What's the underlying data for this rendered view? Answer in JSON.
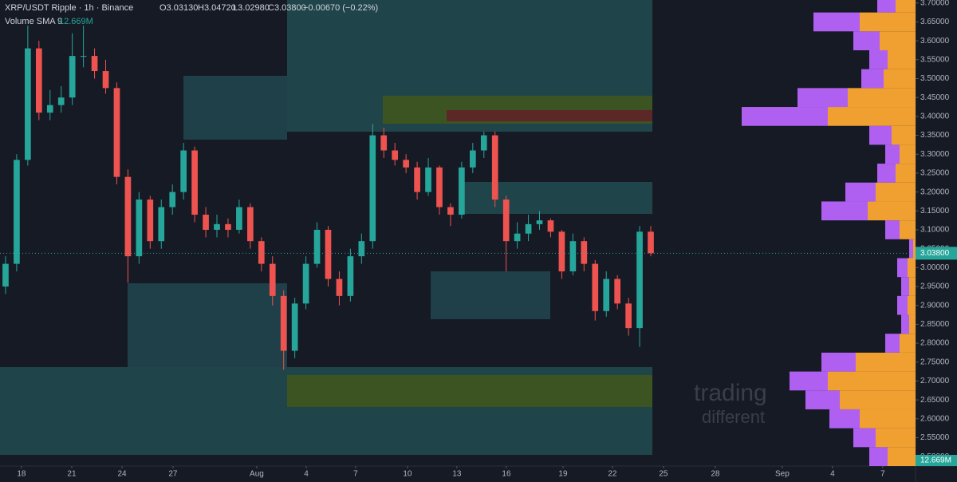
{
  "chart_data": {
    "type": "candlestick",
    "title": "XRP/USDT Ripple · 1h · Binance",
    "ohlc": [
      "O3.03130",
      "H3.04720",
      "L3.02980",
      "C3.03800",
      "−0.00670 (−0.22%)"
    ],
    "indicator": "Volume SMA 9",
    "volume_sma": "12.669M",
    "watermark": [
      "trading",
      "different"
    ],
    "up_color": "#26a69a",
    "down_color": "#ef5350",
    "candles": [
      [
        2.95,
        3.03,
        2.93,
        3.01
      ],
      [
        3.01,
        3.3,
        2.99,
        3.285
      ],
      [
        3.285,
        3.64,
        3.27,
        3.58
      ],
      [
        3.58,
        3.6,
        3.39,
        3.41
      ],
      [
        3.41,
        3.47,
        3.39,
        3.43
      ],
      [
        3.43,
        3.48,
        3.41,
        3.45
      ],
      [
        3.45,
        3.62,
        3.43,
        3.56
      ],
      [
        3.56,
        3.64,
        3.53,
        3.56
      ],
      [
        3.56,
        3.58,
        3.5,
        3.52
      ],
      [
        3.52,
        3.55,
        3.46,
        3.475
      ],
      [
        3.475,
        3.49,
        3.22,
        3.24
      ],
      [
        3.24,
        3.26,
        2.96,
        3.03
      ],
      [
        3.03,
        3.2,
        3.01,
        3.18
      ],
      [
        3.18,
        3.19,
        3.05,
        3.07
      ],
      [
        3.07,
        3.18,
        3.05,
        3.16
      ],
      [
        3.16,
        3.22,
        3.14,
        3.2
      ],
      [
        3.2,
        3.33,
        3.18,
        3.31
      ],
      [
        3.31,
        3.32,
        3.12,
        3.14
      ],
      [
        3.14,
        3.16,
        3.08,
        3.1
      ],
      [
        3.1,
        3.14,
        3.08,
        3.115
      ],
      [
        3.115,
        3.13,
        3.08,
        3.1
      ],
      [
        3.1,
        3.18,
        3.09,
        3.16
      ],
      [
        3.16,
        3.17,
        3.05,
        3.07
      ],
      [
        3.07,
        3.08,
        2.99,
        3.01
      ],
      [
        3.01,
        3.03,
        2.9,
        2.925
      ],
      [
        2.925,
        2.94,
        2.73,
        2.78
      ],
      [
        2.78,
        2.92,
        2.76,
        2.905
      ],
      [
        2.905,
        3.03,
        2.89,
        3.01
      ],
      [
        3.01,
        3.12,
        3.0,
        3.1
      ],
      [
        3.1,
        3.11,
        2.95,
        2.97
      ],
      [
        2.97,
        2.99,
        2.9,
        2.925
      ],
      [
        2.925,
        3.05,
        2.91,
        3.03
      ],
      [
        3.03,
        3.09,
        3.01,
        3.07
      ],
      [
        3.07,
        3.38,
        3.05,
        3.35
      ],
      [
        3.35,
        3.37,
        3.29,
        3.31
      ],
      [
        3.31,
        3.33,
        3.27,
        3.285
      ],
      [
        3.285,
        3.3,
        3.25,
        3.265
      ],
      [
        3.265,
        3.28,
        3.18,
        3.2
      ],
      [
        3.2,
        3.29,
        3.19,
        3.265
      ],
      [
        3.265,
        3.27,
        3.14,
        3.16
      ],
      [
        3.16,
        3.17,
        3.11,
        3.14
      ],
      [
        3.14,
        3.28,
        3.13,
        3.265
      ],
      [
        3.265,
        3.33,
        3.25,
        3.31
      ],
      [
        3.31,
        3.36,
        3.29,
        3.35
      ],
      [
        3.35,
        3.36,
        3.16,
        3.18
      ],
      [
        3.18,
        3.19,
        2.99,
        3.07
      ],
      [
        3.07,
        3.12,
        3.05,
        3.09
      ],
      [
        3.09,
        3.14,
        3.07,
        3.115
      ],
      [
        3.115,
        3.15,
        3.1,
        3.125
      ],
      [
        3.125,
        3.13,
        3.08,
        3.095
      ],
      [
        3.095,
        3.1,
        2.97,
        2.99
      ],
      [
        2.99,
        3.09,
        2.98,
        3.07
      ],
      [
        3.07,
        3.08,
        2.99,
        3.01
      ],
      [
        3.01,
        3.02,
        2.86,
        2.885
      ],
      [
        2.885,
        2.99,
        2.87,
        2.97
      ],
      [
        2.97,
        2.98,
        2.89,
        2.905
      ],
      [
        2.905,
        2.92,
        2.82,
        2.84
      ],
      [
        2.84,
        3.11,
        2.79,
        3.095
      ],
      [
        3.095,
        3.11,
        3.03,
        3.038
      ]
    ],
    "xlim": [
      -0.5,
      81.8
    ],
    "xticks": [
      {
        "value": 1.43,
        "label": "18"
      },
      {
        "value": 5.95,
        "label": "21"
      },
      {
        "value": 10.47,
        "label": "24"
      },
      {
        "value": 15.05,
        "label": "27"
      },
      {
        "value": 22.58,
        "label": "Aug"
      },
      {
        "value": 27.03,
        "label": "4"
      },
      {
        "value": 31.47,
        "label": "7"
      },
      {
        "value": 36.13,
        "label": "10"
      },
      {
        "value": 40.57,
        "label": "13"
      },
      {
        "value": 45.02,
        "label": "16"
      },
      {
        "value": 50.11,
        "label": "19"
      },
      {
        "value": 54.55,
        "label": "22"
      },
      {
        "value": 59.14,
        "label": "25"
      },
      {
        "value": 63.8,
        "label": "28"
      },
      {
        "value": 69.82,
        "label": "Sep"
      },
      {
        "value": 74.34,
        "label": "4"
      },
      {
        "value": 78.85,
        "label": "7"
      }
    ],
    "ylim": [
      2.475,
      3.708
    ],
    "yticks": [
      {
        "value": 2.5,
        "label": "2.50000"
      },
      {
        "value": 2.55,
        "label": "2.55000"
      },
      {
        "value": 2.6,
        "label": "2.60000"
      },
      {
        "value": 2.65,
        "label": "2.65000"
      },
      {
        "value": 2.7,
        "label": "2.70000"
      },
      {
        "value": 2.75,
        "label": "2.75000"
      },
      {
        "value": 2.8,
        "label": "2.80000"
      },
      {
        "value": 2.85,
        "label": "2.85000"
      },
      {
        "value": 2.9,
        "label": "2.90000"
      },
      {
        "value": 2.95,
        "label": "2.95000"
      },
      {
        "value": 3.0,
        "label": "3.00000"
      },
      {
        "value": 3.05,
        "label": "3.05000"
      },
      {
        "value": 3.1,
        "label": "3.10000"
      },
      {
        "value": 3.15,
        "label": "3.15000"
      },
      {
        "value": 3.2,
        "label": "3.20000"
      },
      {
        "value": 3.25,
        "label": "3.25000"
      },
      {
        "value": 3.3,
        "label": "3.30000"
      },
      {
        "value": 3.35,
        "label": "3.35000"
      },
      {
        "value": 3.4,
        "label": "3.40000"
      },
      {
        "value": 3.45,
        "label": "3.45000"
      },
      {
        "value": 3.5,
        "label": "3.50000"
      },
      {
        "value": 3.55,
        "label": "3.55000"
      },
      {
        "value": 3.6,
        "label": "3.60000"
      },
      {
        "value": 3.65,
        "label": "3.65000"
      },
      {
        "value": 3.7,
        "label": "3.70000"
      }
    ],
    "last_price": {
      "value": 3.038,
      "label": "3.03800"
    },
    "volume_profile": {
      "up_color": "#f0a030",
      "down_color": "#b060f0",
      "rows": [
        2.5,
        2.55,
        2.6,
        2.65,
        2.7,
        2.75,
        2.8,
        2.85,
        2.9,
        2.95,
        3.0,
        3.05,
        3.1,
        3.15,
        3.2,
        3.25,
        3.3,
        3.35,
        3.4,
        3.45,
        3.5,
        3.55,
        3.6,
        3.65,
        3.7
      ],
      "up": [
        35,
        50,
        70,
        95,
        110,
        75,
        20,
        8,
        10,
        8,
        10,
        3,
        20,
        60,
        50,
        25,
        20,
        30,
        110,
        85,
        40,
        35,
        45,
        70,
        25
      ],
      "down": [
        23,
        28,
        38,
        43,
        48,
        43,
        18,
        10,
        13,
        10,
        13,
        5,
        18,
        58,
        38,
        23,
        18,
        28,
        108,
        63,
        28,
        23,
        33,
        58,
        23
      ]
    }
  }
}
